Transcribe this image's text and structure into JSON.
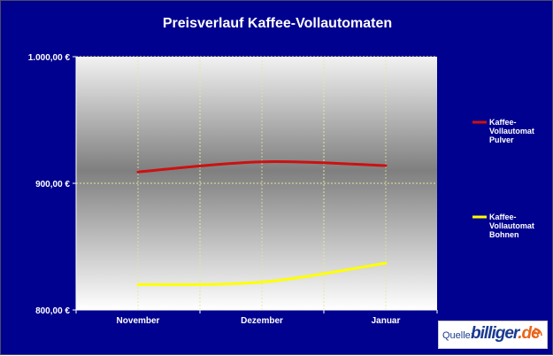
{
  "chart_data": {
    "type": "line",
    "title": "Preisverlauf Kaffee-Vollautomaten",
    "categories": [
      "November",
      "Dezember",
      "Januar"
    ],
    "y_ticks": [
      "800,00 €",
      "900,00 €",
      "1.000,00 €"
    ],
    "ylim": [
      800,
      1000
    ],
    "y_tick_values": [
      800,
      900,
      1000
    ],
    "grid": true,
    "legend_position": "right",
    "series": [
      {
        "name": "Kaffee-Vollautomat Pulver",
        "values": [
          909,
          917,
          914
        ],
        "color": "#cc1111"
      },
      {
        "name": "Kaffee-Vollautomat Bohnen",
        "values": [
          820,
          822,
          837
        ],
        "color": "#ffff00"
      }
    ]
  },
  "legend": {
    "items": [
      {
        "lines": [
          "Kaffee-",
          "Vollautomat",
          "Pulver"
        ],
        "color": "#cc1111"
      },
      {
        "lines": [
          "Kaffee-",
          "Vollautomat",
          "Bohnen"
        ],
        "color": "#ffff00"
      }
    ]
  },
  "source": {
    "label": "Quelle:",
    "brand": "billiger",
    "brand_suffix": ".de",
    "icon": "wifi-signal-icon"
  }
}
